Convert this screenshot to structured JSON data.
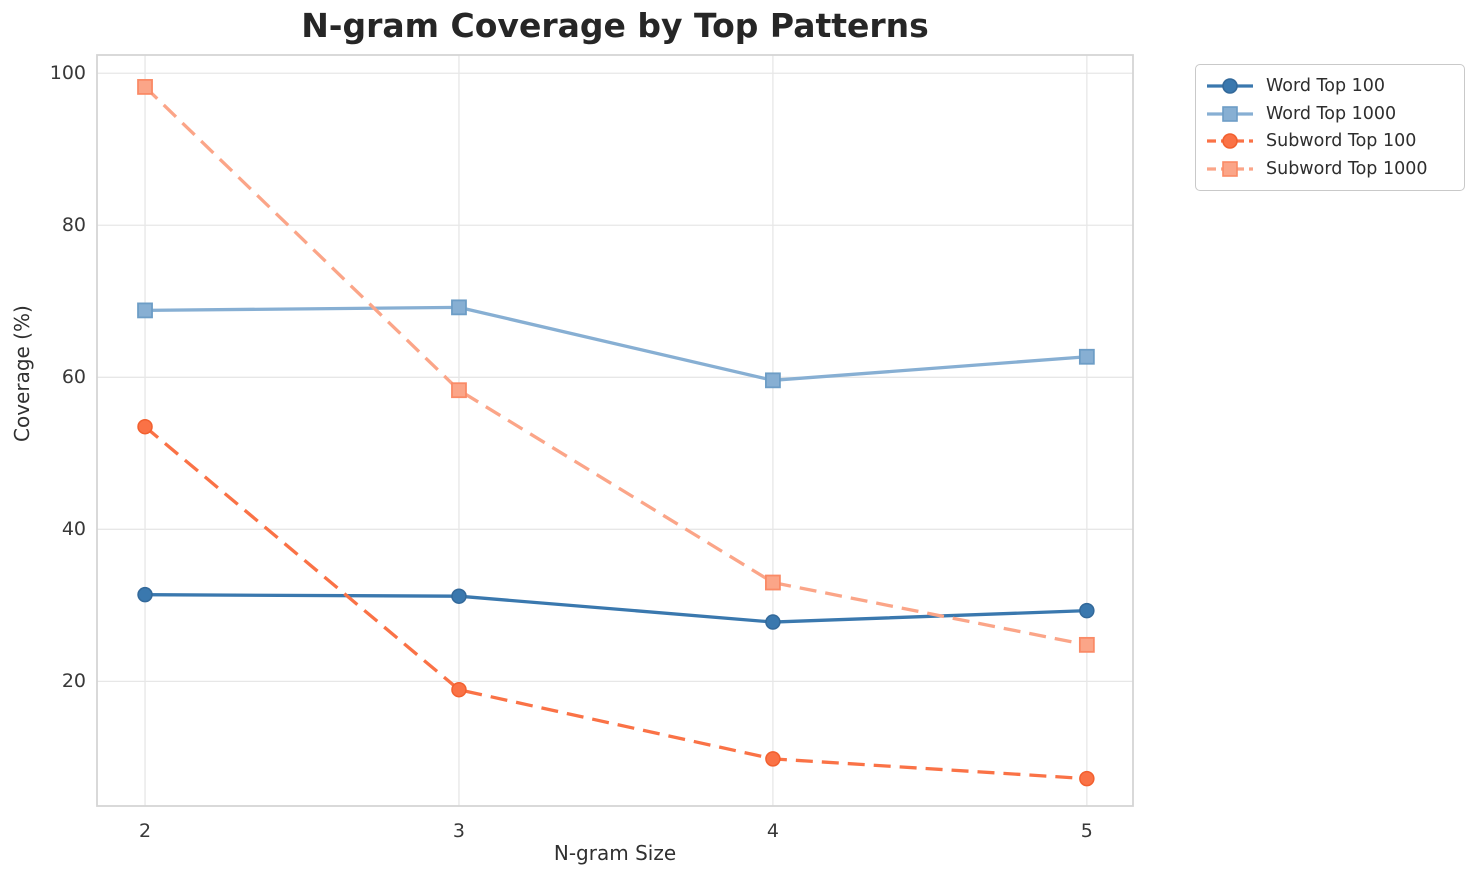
{
  "chart_data": {
    "type": "line",
    "title": "N-gram Coverage by Top Patterns",
    "xlabel": "N-gram Size",
    "ylabel": "Coverage (%)",
    "x": [
      2,
      3,
      4,
      5
    ],
    "xticks": [
      "2",
      "3",
      "4",
      "5"
    ],
    "yticks": [
      "20",
      "40",
      "60",
      "80",
      "100"
    ],
    "ytick_values": [
      20,
      40,
      60,
      80,
      100
    ],
    "xlim": [
      1.847,
      5.147
    ],
    "ylim": [
      3.6,
      102.4
    ],
    "grid": true,
    "legend_position": "upper right outside plot",
    "series": [
      {
        "name": "Word Top 100",
        "values": [
          31.4,
          31.2,
          27.8,
          29.3
        ],
        "color": "#3a78ae",
        "edge_color": "#33699a",
        "line_style": "solid",
        "marker": "circle"
      },
      {
        "name": "Word Top 1000",
        "values": [
          68.8,
          69.2,
          59.6,
          62.7
        ],
        "color": "#87afd3",
        "edge_color": "#6d9dc6",
        "line_style": "solid",
        "marker": "square"
      },
      {
        "name": "Subword Top 100",
        "values": [
          53.5,
          18.9,
          9.8,
          7.2
        ],
        "color": "#fa7246",
        "edge_color": "#f2602f",
        "line_style": "dashed",
        "marker": "circle"
      },
      {
        "name": "Subword Top 1000",
        "values": [
          98.2,
          58.3,
          33.0,
          24.8
        ],
        "color": "#fba588",
        "edge_color": "#fa8a66",
        "line_style": "dashed",
        "marker": "square"
      }
    ]
  },
  "style": {
    "grid_color": "#e7e7e7",
    "spine_color": "#d5d5d5",
    "background": "#ffffff"
  }
}
